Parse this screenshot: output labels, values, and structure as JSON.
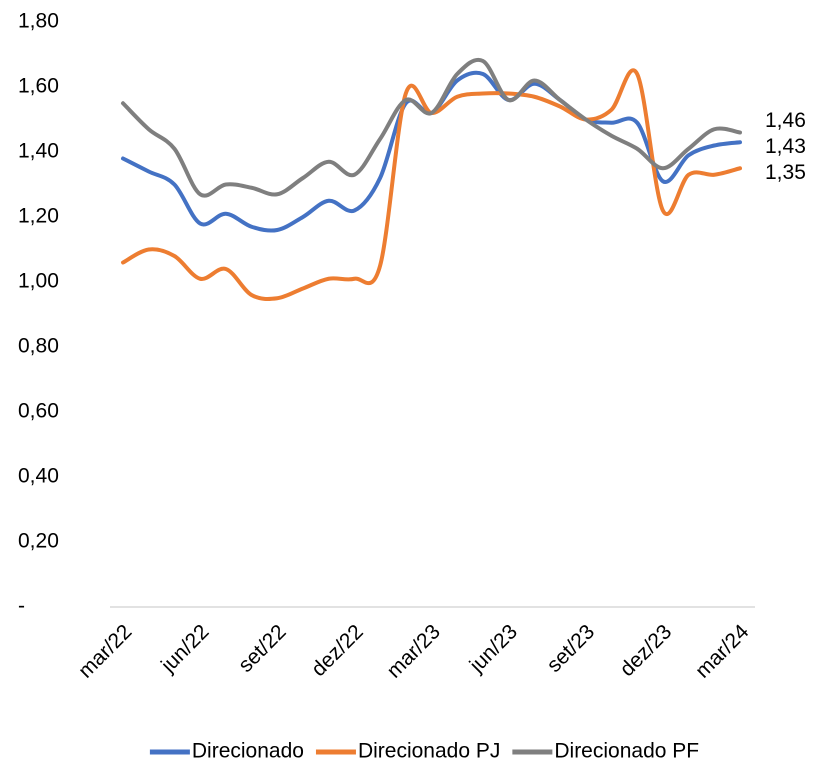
{
  "chart_data": {
    "type": "line",
    "smooth": true,
    "legend": "bottom",
    "categories": [
      "mar/22",
      null,
      null,
      "jun/22",
      null,
      null,
      "set/22",
      null,
      null,
      "dez/22",
      null,
      null,
      "mar/23",
      null,
      null,
      "jun/23",
      null,
      null,
      "set/23",
      null,
      null,
      "dez/23",
      null,
      null,
      "mar/24"
    ],
    "ylim": [
      0,
      1.8
    ],
    "yticks": [
      {
        "value": 0,
        "label": "-"
      },
      {
        "value": 0.2,
        "label": "0,20"
      },
      {
        "value": 0.4,
        "label": "0,40"
      },
      {
        "value": 0.6,
        "label": "0,60"
      },
      {
        "value": 0.8,
        "label": "0,80"
      },
      {
        "value": 1.0,
        "label": "1,00"
      },
      {
        "value": 1.2,
        "label": "1,20"
      },
      {
        "value": 1.4,
        "label": "1,40"
      },
      {
        "value": 1.6,
        "label": "1,60"
      },
      {
        "value": 1.8,
        "label": "1,80"
      }
    ],
    "series": [
      {
        "name": "Direcionado",
        "color": "#4472c4",
        "values": [
          1.38,
          1.34,
          1.3,
          1.18,
          1.21,
          1.17,
          1.16,
          1.2,
          1.25,
          1.22,
          1.32,
          1.55,
          1.52,
          1.62,
          1.64,
          1.56,
          1.61,
          1.56,
          1.5,
          1.49,
          1.49,
          1.31,
          1.39,
          1.42,
          1.43
        ],
        "value_labels": [
          null,
          null,
          null,
          null,
          null,
          null,
          null,
          null,
          null,
          null,
          null,
          null,
          null,
          null,
          null,
          null,
          null,
          null,
          null,
          null,
          null,
          null,
          null,
          null,
          "1,43"
        ]
      },
      {
        "name": "Direcionado PJ",
        "color": "#ed7d31",
        "values": [
          1.06,
          1.1,
          1.08,
          1.01,
          1.04,
          0.96,
          0.95,
          0.98,
          1.01,
          1.01,
          1.05,
          1.58,
          1.52,
          1.57,
          1.58,
          1.58,
          1.57,
          1.54,
          1.5,
          1.53,
          1.64,
          1.22,
          1.33,
          1.33,
          1.35
        ],
        "value_labels": [
          null,
          null,
          null,
          null,
          null,
          null,
          null,
          null,
          null,
          null,
          null,
          null,
          null,
          null,
          null,
          null,
          null,
          null,
          null,
          null,
          null,
          null,
          null,
          null,
          "1,35"
        ]
      },
      {
        "name": "Direcionado PF",
        "color": "#7f7f7f",
        "values": [
          1.55,
          1.47,
          1.41,
          1.27,
          1.3,
          1.29,
          1.27,
          1.32,
          1.37,
          1.33,
          1.44,
          1.56,
          1.52,
          1.64,
          1.68,
          1.56,
          1.62,
          1.56,
          1.5,
          1.45,
          1.41,
          1.35,
          1.41,
          1.47,
          1.46
        ],
        "value_labels": [
          null,
          null,
          null,
          null,
          null,
          null,
          null,
          null,
          null,
          null,
          null,
          null,
          null,
          null,
          null,
          null,
          null,
          null,
          null,
          null,
          null,
          null,
          null,
          null,
          "1,46"
        ]
      }
    ]
  }
}
